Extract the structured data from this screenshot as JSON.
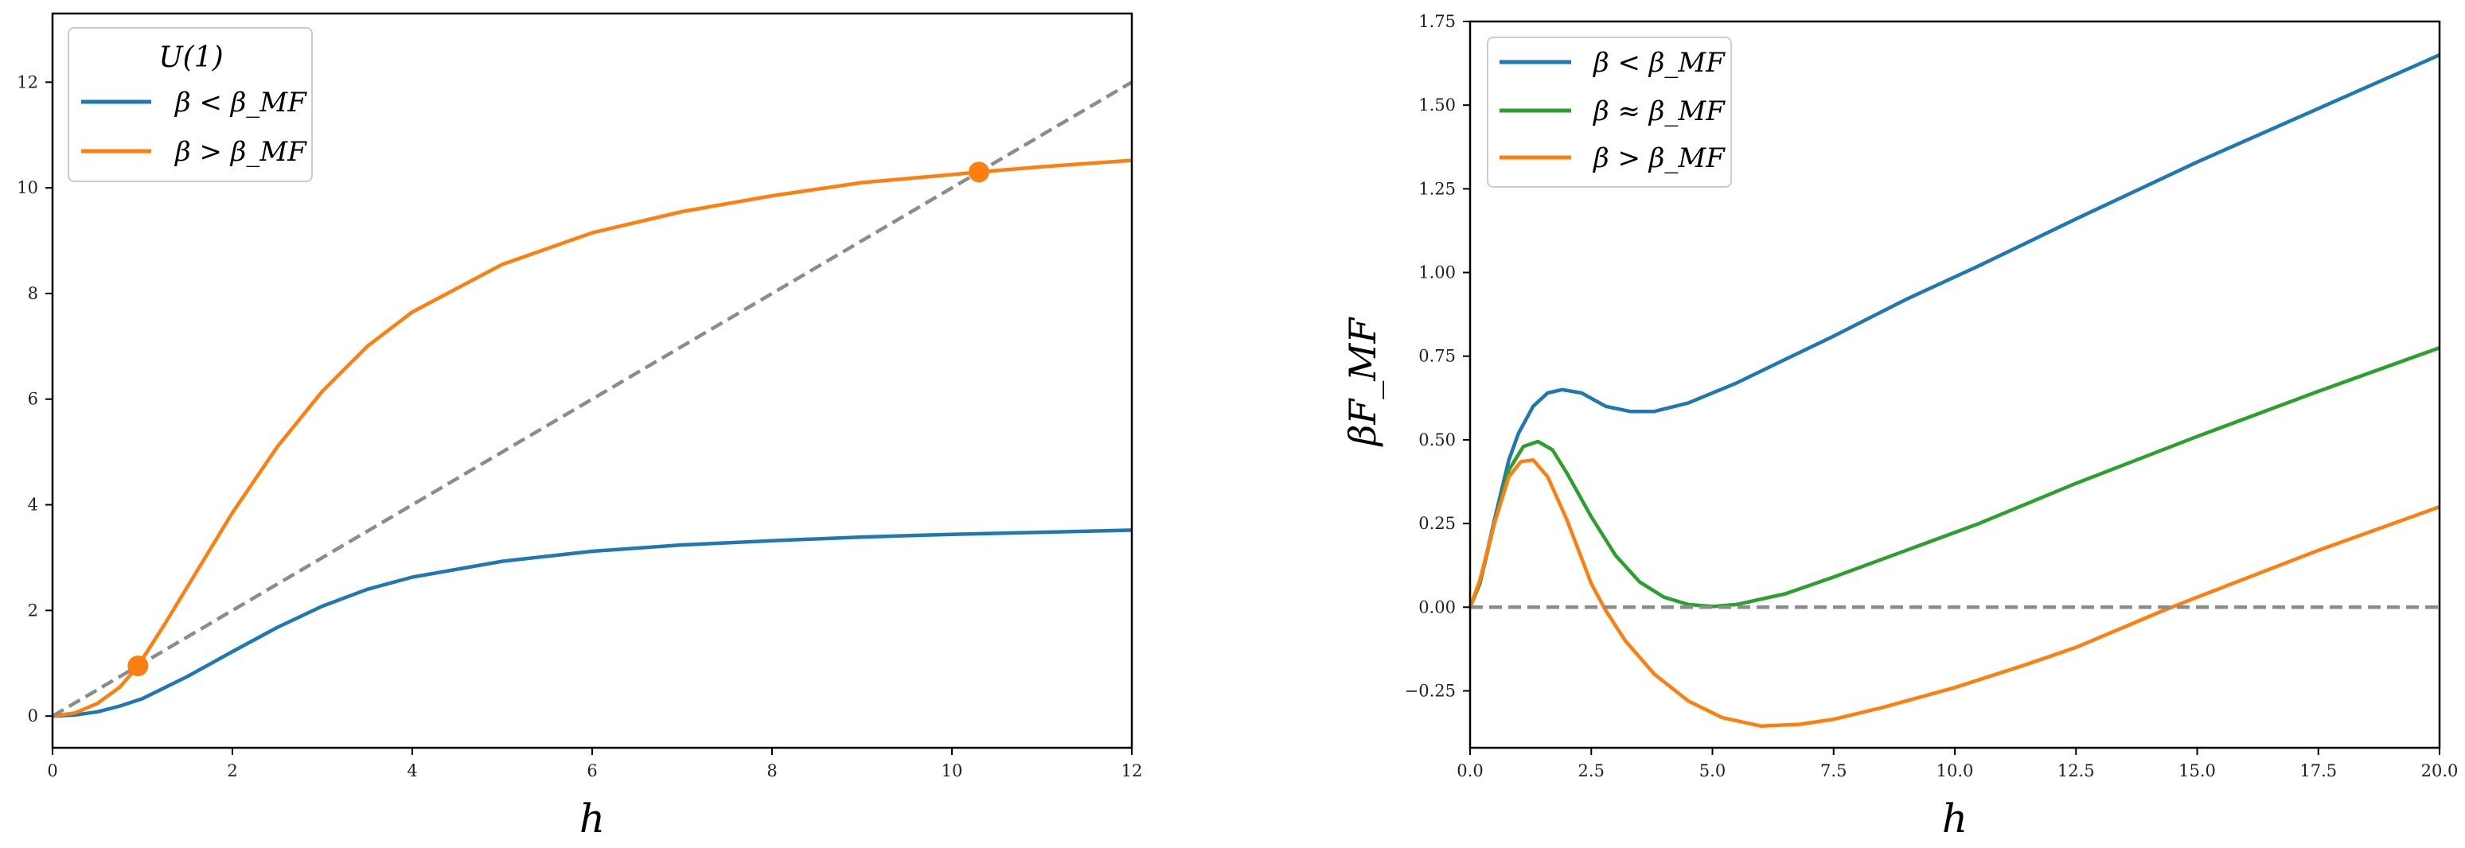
{
  "chart_data": [
    {
      "type": "line",
      "title": "",
      "xlabel": "h",
      "ylabel": "",
      "xlim": [
        0,
        12
      ],
      "ylim": [
        -0.6,
        13.3
      ],
      "xticks": [
        "0",
        "2",
        "4",
        "6",
        "8",
        "10",
        "12"
      ],
      "yticks": [
        "0",
        "2",
        "4",
        "6",
        "8",
        "10",
        "12"
      ],
      "grid": false,
      "legend": {
        "title": "U(1)",
        "placement": "top-left"
      },
      "series": [
        {
          "name": "β < β_MF",
          "color": "#1f77b4",
          "x": [
            0,
            0.25,
            0.5,
            0.75,
            1.0,
            1.5,
            2.0,
            2.5,
            3.0,
            3.5,
            4.0,
            5.0,
            6.0,
            7.0,
            8.0,
            9.0,
            10.0,
            11.0,
            12.0
          ],
          "y": [
            0,
            0.02,
            0.08,
            0.19,
            0.33,
            0.75,
            1.22,
            1.68,
            2.08,
            2.4,
            2.63,
            2.93,
            3.12,
            3.24,
            3.32,
            3.39,
            3.44,
            3.48,
            3.52
          ]
        },
        {
          "name": "β > β_MF",
          "color": "#ff7f0e",
          "x": [
            0,
            0.25,
            0.5,
            0.75,
            0.95,
            1.25,
            1.5,
            2.0,
            2.5,
            3.0,
            3.5,
            4.0,
            5.0,
            6.0,
            7.0,
            8.0,
            9.0,
            10.0,
            10.3,
            11.0,
            12.0
          ],
          "y": [
            0,
            0.06,
            0.24,
            0.55,
            0.95,
            1.75,
            2.45,
            3.85,
            5.1,
            6.15,
            7.0,
            7.65,
            8.55,
            9.15,
            9.55,
            9.85,
            10.1,
            10.25,
            10.3,
            10.4,
            10.52
          ]
        },
        {
          "name": "",
          "style": "dashed",
          "color": "#8c8c8c",
          "x": [
            0,
            12
          ],
          "y": [
            0,
            12
          ]
        }
      ],
      "markers": [
        {
          "x": 0.95,
          "y": 0.95,
          "color": "#ff7f0e"
        },
        {
          "x": 10.3,
          "y": 10.3,
          "color": "#ff7f0e"
        }
      ]
    },
    {
      "type": "line",
      "title": "",
      "xlabel": "h",
      "ylabel": "βF_MF",
      "xlim": [
        0,
        20
      ],
      "ylim": [
        -0.42,
        1.75
      ],
      "xticks": [
        "0.0",
        "2.5",
        "5.0",
        "7.5",
        "10.0",
        "12.5",
        "15.0",
        "17.5",
        "20.0"
      ],
      "yticks": [
        "−0.25",
        "0.00",
        "0.25",
        "0.50",
        "0.75",
        "1.00",
        "1.25",
        "1.50",
        "1.75"
      ],
      "grid": false,
      "legend": {
        "title": "",
        "placement": "top-left"
      },
      "series": [
        {
          "name": "β < β_MF",
          "color": "#1f77b4",
          "x": [
            0,
            0.2,
            0.5,
            0.8,
            1.0,
            1.3,
            1.6,
            1.9,
            2.3,
            2.8,
            3.3,
            3.8,
            4.5,
            5.5,
            6.5,
            7.5,
            9.0,
            10.5,
            12.5,
            15.0,
            17.5,
            20.0
          ],
          "y": [
            0,
            0.07,
            0.26,
            0.44,
            0.52,
            0.6,
            0.64,
            0.65,
            0.64,
            0.6,
            0.585,
            0.585,
            0.61,
            0.67,
            0.74,
            0.81,
            0.92,
            1.02,
            1.16,
            1.33,
            1.49,
            1.65
          ]
        },
        {
          "name": "β ≈ β_MF",
          "color": "#2ca02c",
          "x": [
            0,
            0.2,
            0.5,
            0.8,
            1.1,
            1.4,
            1.7,
            2.0,
            2.5,
            3.0,
            3.5,
            4.0,
            4.5,
            5.0,
            5.5,
            6.5,
            7.5,
            9.0,
            10.5,
            12.5,
            15.0,
            17.5,
            20.0
          ],
          "y": [
            0,
            0.07,
            0.25,
            0.41,
            0.48,
            0.495,
            0.47,
            0.4,
            0.27,
            0.155,
            0.075,
            0.03,
            0.008,
            0.002,
            0.008,
            0.04,
            0.09,
            0.17,
            0.25,
            0.37,
            0.51,
            0.645,
            0.775
          ]
        },
        {
          "name": "β > β_MF",
          "color": "#ff7f0e",
          "x": [
            0,
            0.2,
            0.5,
            0.8,
            1.05,
            1.3,
            1.6,
            2.0,
            2.5,
            2.8,
            3.2,
            3.8,
            4.5,
            5.2,
            6.0,
            6.8,
            7.5,
            8.5,
            10.0,
            11.5,
            12.5,
            14.3,
            15.0,
            17.5,
            20.0
          ],
          "y": [
            0,
            0.08,
            0.25,
            0.39,
            0.435,
            0.44,
            0.39,
            0.26,
            0.07,
            -0.01,
            -0.1,
            -0.2,
            -0.28,
            -0.33,
            -0.355,
            -0.35,
            -0.335,
            -0.3,
            -0.24,
            -0.17,
            -0.12,
            -0.01,
            0.03,
            0.17,
            0.3
          ]
        },
        {
          "name": "",
          "style": "dashed",
          "color": "#8c8c8c",
          "x": [
            0,
            20
          ],
          "y": [
            0,
            0
          ]
        }
      ]
    }
  ]
}
